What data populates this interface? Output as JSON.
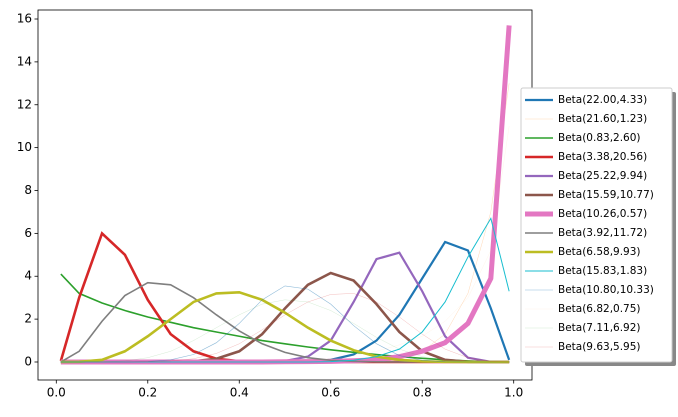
{
  "chart_data": {
    "type": "line",
    "x": [
      0.01,
      0.05,
      0.1,
      0.15,
      0.2,
      0.25,
      0.3,
      0.35,
      0.4,
      0.45,
      0.5,
      0.55,
      0.6,
      0.65,
      0.7,
      0.75,
      0.8,
      0.85,
      0.9,
      0.95,
      0.99
    ],
    "xlim": [
      -0.04,
      1.04
    ],
    "xticks": [
      {
        "value": 0,
        "label": "0.0"
      },
      0.2,
      0.4,
      0.6,
      0.8,
      {
        "value": 1,
        "label": "1.0"
      }
    ],
    "ylim": [
      -0.84,
      16.42
    ],
    "yticks": [
      0,
      2,
      4,
      6,
      8,
      10,
      12,
      14,
      16
    ],
    "legend": "center right",
    "series": [
      {
        "name": "Beta(22.00,4.33)",
        "color": "#1f77b4",
        "width": 2.2,
        "opacity": 1,
        "values": [
          0,
          0,
          0,
          0,
          0,
          0,
          0,
          0,
          0,
          0,
          0.01,
          0.03,
          0.1,
          0.35,
          1.0,
          2.2,
          3.9,
          5.6,
          5.2,
          2.5,
          0.1
        ]
      },
      {
        "name": "Beta(21.60,1.23)",
        "color": "#ff7f0e",
        "width": 0.5,
        "opacity": 0.3,
        "values": [
          0,
          0,
          0,
          0,
          0,
          0,
          0,
          0,
          0,
          0,
          0,
          0,
          0.01,
          0.02,
          0.05,
          0.15,
          0.5,
          1.3,
          3.2,
          7,
          13
        ]
      },
      {
        "name": "Beta(0.83,2.60)",
        "color": "#2ca02c",
        "width": 1.6,
        "opacity": 1,
        "values": [
          4.1,
          3.2,
          2.75,
          2.4,
          2.1,
          1.85,
          1.6,
          1.4,
          1.2,
          1.0,
          0.85,
          0.7,
          0.57,
          0.45,
          0.35,
          0.25,
          0.17,
          0.1,
          0.05,
          0.015,
          0
        ]
      },
      {
        "name": "Beta(3.38,20.56)",
        "color": "#d62728",
        "width": 2.6,
        "opacity": 1,
        "values": [
          0.05,
          3.0,
          6.0,
          5.0,
          2.9,
          1.3,
          0.5,
          0.15,
          0.04,
          0.01,
          0,
          0,
          0,
          0,
          0,
          0,
          0,
          0,
          0,
          0,
          0
        ]
      },
      {
        "name": "Beta(25.22,9.94)",
        "color": "#9467bd",
        "width": 2.2,
        "opacity": 1,
        "values": [
          0,
          0,
          0,
          0,
          0,
          0,
          0,
          0,
          0,
          0.01,
          0.05,
          0.25,
          1.0,
          2.8,
          4.8,
          5.1,
          3.3,
          1.2,
          0.2,
          0.01,
          0
        ]
      },
      {
        "name": "Beta(15.59,10.77)",
        "color": "#8c564b",
        "width": 2.6,
        "opacity": 1,
        "values": [
          0,
          0,
          0,
          0,
          0,
          0.01,
          0.03,
          0.15,
          0.5,
          1.3,
          2.5,
          3.6,
          4.15,
          3.8,
          2.7,
          1.4,
          0.5,
          0.1,
          0.01,
          0,
          0
        ]
      },
      {
        "name": "Beta(10.26,0.57)",
        "color": "#e377c2",
        "width": 5,
        "opacity": 1,
        "values": [
          0,
          0,
          0,
          0,
          0,
          0,
          0,
          0,
          0,
          0,
          0.01,
          0.02,
          0.03,
          0.06,
          0.1,
          0.25,
          0.5,
          0.9,
          1.8,
          3.9,
          15.7
        ]
      },
      {
        "name": "Beta(3.92,11.72)",
        "color": "#7f7f7f",
        "width": 1.6,
        "opacity": 1,
        "values": [
          0,
          0.5,
          1.9,
          3.1,
          3.7,
          3.6,
          3.0,
          2.2,
          1.45,
          0.85,
          0.45,
          0.2,
          0.08,
          0.03,
          0.01,
          0,
          0,
          0,
          0,
          0,
          0
        ]
      },
      {
        "name": "Beta(6.58,9.93)",
        "color": "#bcbd22",
        "width": 2.6,
        "opacity": 1,
        "values": [
          0,
          0.01,
          0.1,
          0.5,
          1.2,
          2.0,
          2.8,
          3.2,
          3.25,
          2.9,
          2.3,
          1.6,
          1.0,
          0.55,
          0.25,
          0.1,
          0.03,
          0.005,
          0,
          0,
          0
        ]
      },
      {
        "name": "Beta(15.83,1.83)",
        "color": "#17becf",
        "width": 1,
        "opacity": 1,
        "values": [
          0,
          0,
          0,
          0,
          0,
          0,
          0,
          0,
          0,
          0,
          0,
          0,
          0.02,
          0.08,
          0.25,
          0.6,
          1.4,
          2.8,
          4.9,
          6.7,
          3.3
        ]
      },
      {
        "name": "Beta(10.80,10.33)",
        "color": "#1f77b4",
        "width": 0.6,
        "opacity": 0.5,
        "values": [
          0,
          0,
          0,
          0,
          0.02,
          0.1,
          0.35,
          0.9,
          1.8,
          2.9,
          3.55,
          3.4,
          2.7,
          1.7,
          0.85,
          0.3,
          0.08,
          0.01,
          0,
          0,
          0
        ]
      },
      {
        "name": "Beta(6.82,0.75)",
        "color": "#ff7f0e",
        "width": 0.3,
        "opacity": 0.15,
        "values": [
          0,
          0,
          0,
          0,
          0,
          0,
          0,
          0,
          0,
          0,
          0.05,
          0.1,
          0.15,
          0.3,
          0.5,
          0.8,
          1.2,
          1.9,
          3.0,
          5.2,
          11
        ]
      },
      {
        "name": "Beta(7.11,6.92)",
        "color": "#2ca02c",
        "width": 0.4,
        "opacity": 0.25,
        "values": [
          0,
          0,
          0.01,
          0.05,
          0.2,
          0.5,
          1.0,
          1.6,
          2.2,
          2.7,
          2.9,
          2.8,
          2.4,
          1.8,
          1.15,
          0.6,
          0.25,
          0.07,
          0.01,
          0,
          0
        ]
      },
      {
        "name": "Beta(9.63,5.95)",
        "color": "#d62728",
        "width": 0.5,
        "opacity": 0.3,
        "values": [
          0,
          0,
          0,
          0,
          0.01,
          0.05,
          0.15,
          0.4,
          0.85,
          1.5,
          2.2,
          2.8,
          3.15,
          3.2,
          2.8,
          2.1,
          1.3,
          0.6,
          0.2,
          0.02,
          0
        ]
      }
    ]
  }
}
